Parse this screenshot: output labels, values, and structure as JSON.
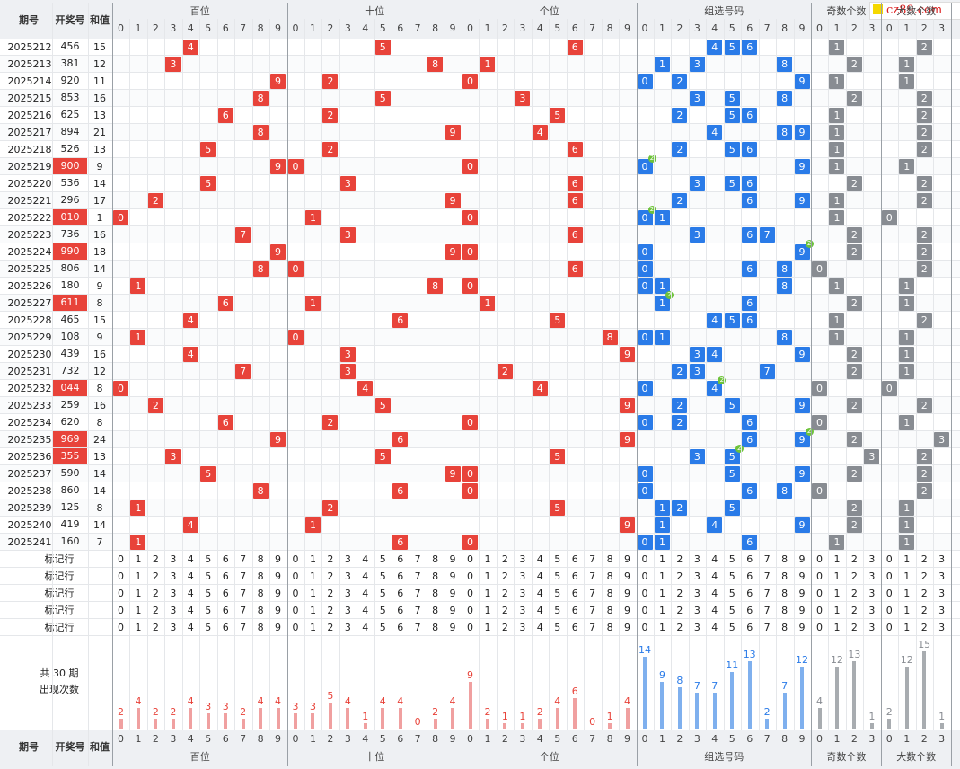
{
  "logo": {
    "text": "cz89.com"
  },
  "columns": {
    "period": "期号",
    "number": "开奖号",
    "sum": "和值",
    "groups": [
      "百位",
      "十位",
      "个位",
      "组选号码",
      "奇数个数",
      "大数个数"
    ],
    "digits10": [
      "0",
      "1",
      "2",
      "3",
      "4",
      "5",
      "6",
      "7",
      "8",
      "9"
    ],
    "digits4": [
      "0",
      "1",
      "2",
      "3"
    ]
  },
  "rows": [
    {
      "period": "2025212",
      "number": "456",
      "sum": "15",
      "odd": 1,
      "big": 2,
      "rep": null
    },
    {
      "period": "2025213",
      "number": "381",
      "sum": "12",
      "odd": 2,
      "big": 1,
      "rep": null
    },
    {
      "period": "2025214",
      "number": "920",
      "sum": "11",
      "odd": 1,
      "big": 1,
      "rep": null
    },
    {
      "period": "2025215",
      "number": "853",
      "sum": "16",
      "odd": 2,
      "big": 2,
      "rep": null
    },
    {
      "period": "2025216",
      "number": "625",
      "sum": "13",
      "odd": 1,
      "big": 2,
      "rep": null
    },
    {
      "period": "2025217",
      "number": "894",
      "sum": "21",
      "odd": 1,
      "big": 2,
      "rep": null
    },
    {
      "period": "2025218",
      "number": "526",
      "sum": "13",
      "odd": 1,
      "big": 2,
      "rep": null
    },
    {
      "period": "2025219",
      "number": "900",
      "sum": "9",
      "odd": 1,
      "big": 1,
      "rep": "0"
    },
    {
      "period": "2025220",
      "number": "536",
      "sum": "14",
      "odd": 2,
      "big": 2,
      "rep": null
    },
    {
      "period": "2025221",
      "number": "296",
      "sum": "17",
      "odd": 1,
      "big": 2,
      "rep": null
    },
    {
      "period": "2025222",
      "number": "010",
      "sum": "1",
      "odd": 1,
      "big": 0,
      "rep": "0"
    },
    {
      "period": "2025223",
      "number": "736",
      "sum": "16",
      "odd": 2,
      "big": 2,
      "rep": null
    },
    {
      "period": "2025224",
      "number": "990",
      "sum": "18",
      "odd": 2,
      "big": 2,
      "rep": "9"
    },
    {
      "period": "2025225",
      "number": "806",
      "sum": "14",
      "odd": 0,
      "big": 2,
      "rep": null
    },
    {
      "period": "2025226",
      "number": "180",
      "sum": "9",
      "odd": 1,
      "big": 1,
      "rep": null
    },
    {
      "period": "2025227",
      "number": "611",
      "sum": "8",
      "odd": 2,
      "big": 1,
      "rep": "1"
    },
    {
      "period": "2025228",
      "number": "465",
      "sum": "15",
      "odd": 1,
      "big": 2,
      "rep": null
    },
    {
      "period": "2025229",
      "number": "108",
      "sum": "9",
      "odd": 1,
      "big": 1,
      "rep": null
    },
    {
      "period": "2025230",
      "number": "439",
      "sum": "16",
      "odd": 2,
      "big": 1,
      "rep": null
    },
    {
      "period": "2025231",
      "number": "732",
      "sum": "12",
      "odd": 2,
      "big": 1,
      "rep": null
    },
    {
      "period": "2025232",
      "number": "044",
      "sum": "8",
      "odd": 0,
      "big": 0,
      "rep": "4"
    },
    {
      "period": "2025233",
      "number": "259",
      "sum": "16",
      "odd": 2,
      "big": 2,
      "rep": null
    },
    {
      "period": "2025234",
      "number": "620",
      "sum": "8",
      "odd": 0,
      "big": 1,
      "rep": null
    },
    {
      "period": "2025235",
      "number": "969",
      "sum": "24",
      "odd": 2,
      "big": 3,
      "rep": "9"
    },
    {
      "period": "2025236",
      "number": "355",
      "sum": "13",
      "odd": 3,
      "big": 2,
      "rep": "5"
    },
    {
      "period": "2025237",
      "number": "590",
      "sum": "14",
      "odd": 2,
      "big": 2,
      "rep": null
    },
    {
      "period": "2025238",
      "number": "860",
      "sum": "14",
      "odd": 0,
      "big": 2,
      "rep": null
    },
    {
      "period": "2025239",
      "number": "125",
      "sum": "8",
      "odd": 2,
      "big": 1,
      "rep": null
    },
    {
      "period": "2025240",
      "number": "419",
      "sum": "14",
      "odd": 2,
      "big": 1,
      "rep": null
    },
    {
      "period": "2025241",
      "number": "160",
      "sum": "7",
      "odd": 1,
      "big": 1,
      "rep": null
    }
  ],
  "mark_rows": {
    "label": "标记行",
    "count": 5
  },
  "stats": {
    "label_prefix": "共",
    "period_count": "30",
    "label_suffix": "期",
    "label_line2": "出现次数",
    "bai": [
      2,
      4,
      2,
      2,
      4,
      3,
      3,
      2,
      4,
      4
    ],
    "shi": [
      3,
      3,
      5,
      4,
      1,
      4,
      4,
      0,
      2,
      4
    ],
    "ge": [
      9,
      2,
      1,
      1,
      2,
      4,
      6,
      0,
      1,
      4
    ],
    "zu": [
      14,
      9,
      8,
      7,
      7,
      11,
      13,
      2,
      7,
      12
    ],
    "odd": [
      4,
      12,
      13,
      1
    ],
    "big": [
      2,
      12,
      15,
      1
    ]
  },
  "repeat_badge": "2",
  "colors": {
    "red": "#e8433a",
    "blue": "#2a7be8",
    "gray": "#888c92",
    "green": "#6ec33b",
    "red_bar": "#f0a0a0",
    "blue_bar": "#7fb0ee",
    "gray_bar": "#a8acb0"
  }
}
